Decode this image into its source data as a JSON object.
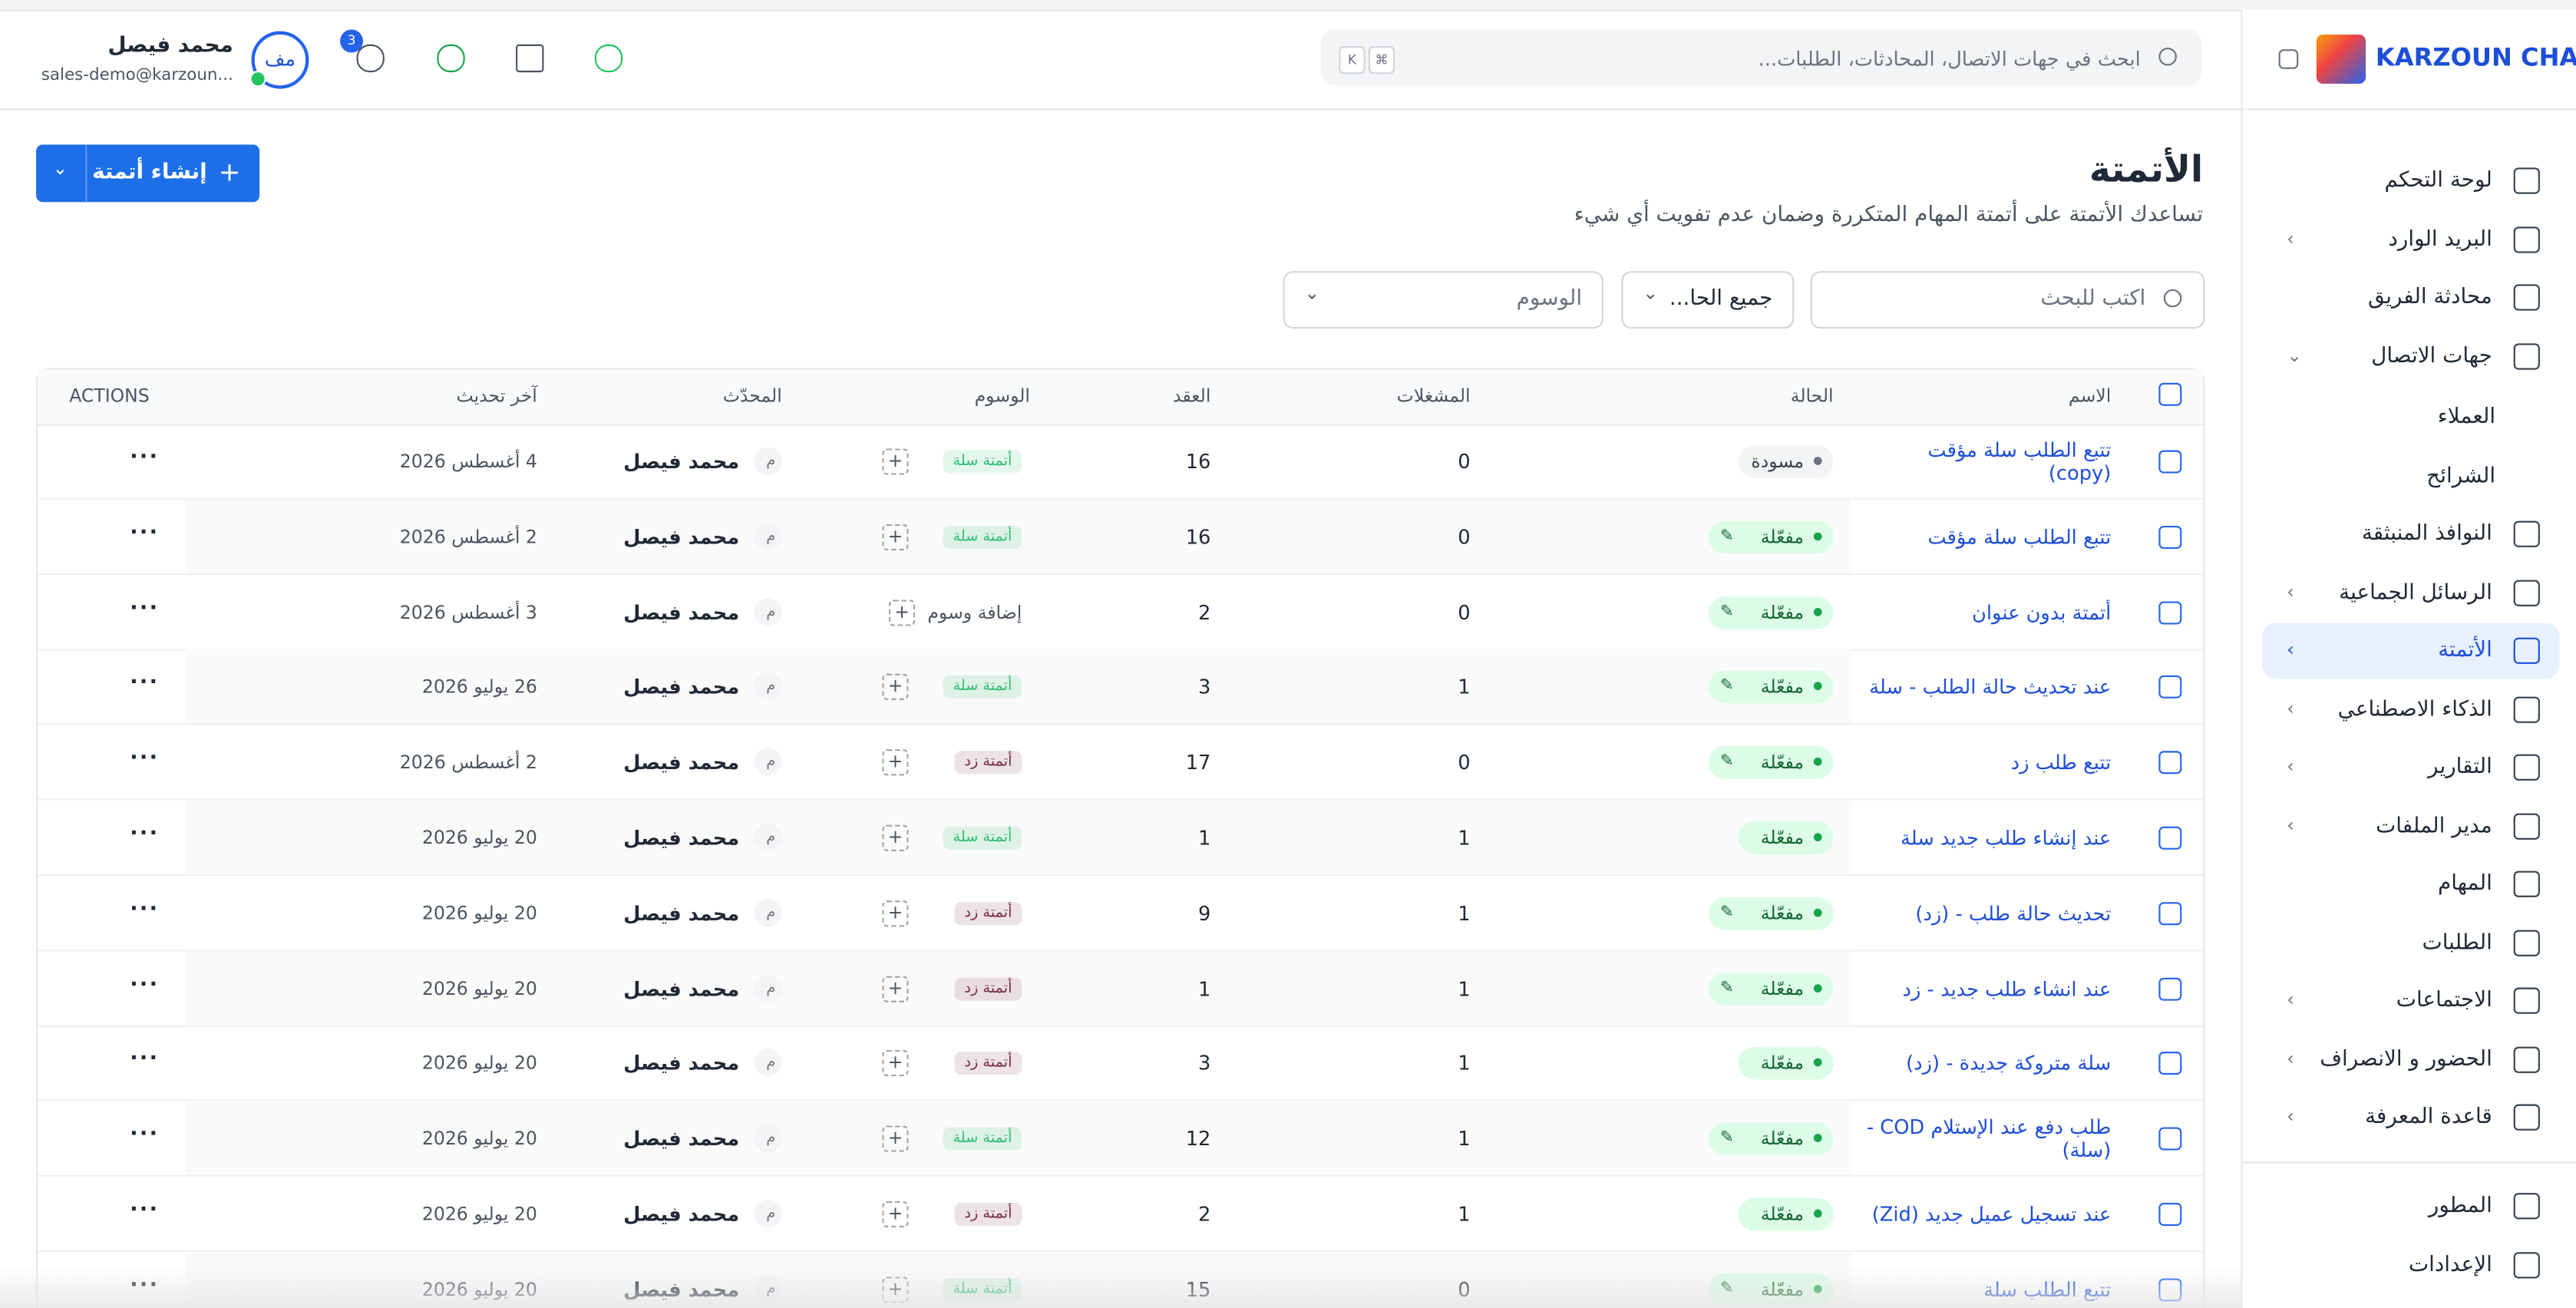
{
  "sidebar": {
    "logo": "KARZOUN CHAT",
    "items": [
      {
        "label": "لوحة التحكم",
        "expandable": false
      },
      {
        "label": "البريد الوارد",
        "expandable": true
      },
      {
        "label": "محادثة الفريق",
        "expandable": false
      },
      {
        "label": "جهات الاتصال",
        "expandable": true,
        "open": true
      },
      {
        "label": "العملاء",
        "sub": true
      },
      {
        "label": "الشرائح",
        "sub": true
      },
      {
        "label": "النوافذ المنبثقة",
        "expandable": false
      },
      {
        "label": "الرسائل الجماعية",
        "expandable": true
      },
      {
        "label": "الأتمتة",
        "expandable": true,
        "active": true
      },
      {
        "label": "الذكاء الاصطناعي",
        "expandable": true
      },
      {
        "label": "التقارير",
        "expandable": true
      },
      {
        "label": "مدير الملفات",
        "expandable": true
      },
      {
        "label": "المهام",
        "expandable": false
      },
      {
        "label": "الطلبات",
        "expandable": false
      },
      {
        "label": "الاجتماعات",
        "expandable": true
      },
      {
        "label": "الحضور و الانصراف",
        "expandable": true
      },
      {
        "label": "قاعدة المعرفة",
        "expandable": true
      }
    ],
    "bottom": [
      "المطور",
      "الإعدادات"
    ]
  },
  "topbar": {
    "search_placeholder": "ابحث في جهات الاتصال، المحادثات، الطلبات...",
    "keys": [
      "K",
      "⌘"
    ],
    "notifications": "3",
    "user_name": "محمد فيصل",
    "user_email": "sales-demo@karzoun...",
    "avatar": "مف"
  },
  "page": {
    "title": "الأتمتة",
    "subtitle": "تساعدك الأتمتة على أتمتة المهام المتكررة وضمان عدم تفويت أي شيء",
    "create_button": "إنشاء أتمتة",
    "search_placeholder": "اكتب للبحث",
    "status_filter": "جميع الحا...",
    "tags_filter": "الوسوم"
  },
  "table": {
    "headers": [
      "الاسم",
      "الحالة",
      "المشغلات",
      "العقد",
      "الوسوم",
      "المحدّث",
      "آخر تحديث",
      "ACTIONS"
    ],
    "rows": [
      {
        "name": "تتبع الطلب سلة مؤقت (copy)",
        "status": "مسودة",
        "draft": true,
        "edit_icon": false,
        "triggers": 0,
        "nodes": 16,
        "tag": "أتمتة سلة",
        "tag_color": "#2fbf71",
        "updater_initial": "م",
        "updater": "محمد فيصل",
        "updated": "4 أغسطس 2026"
      },
      {
        "name": "تتبع الطلب سلة مؤقت",
        "status": "مفعّلة",
        "edit_icon": true,
        "triggers": 0,
        "nodes": 16,
        "tag": "أتمتة سلة",
        "tag_color": "#2fbf71",
        "updater_initial": "م",
        "updater": "محمد فيصل",
        "updated": "2 أغسطس 2026"
      },
      {
        "name": "أتمتة بدون عنوان",
        "status": "مفعّلة",
        "edit_icon": true,
        "triggers": 0,
        "nodes": 2,
        "add_tag": "إضافة وسوم",
        "updater_initial": "م",
        "updater": "محمد فيصل",
        "updated": "3 أغسطس 2026"
      },
      {
        "name": "عند تحديث حالة الطلب - سلة",
        "status": "مفعّلة",
        "edit_icon": true,
        "triggers": 1,
        "nodes": 3,
        "tag": "أتمتة سلة",
        "tag_color": "#2fbf71",
        "updater_initial": "م",
        "updater": "محمد فيصل",
        "updated": "26 يوليو 2026"
      },
      {
        "name": "تتبع طلب زد",
        "status": "مفعّلة",
        "edit_icon": true,
        "triggers": 0,
        "nodes": 17,
        "tag": "أتمتة زد",
        "tag_color": "#7a2e45",
        "updater_initial": "م",
        "updater": "محمد فيصل",
        "updated": "2 أغسطس 2026"
      },
      {
        "name": "عند إنشاء طلب جديد سلة",
        "status": "مفعّلة",
        "edit_icon": false,
        "triggers": 1,
        "nodes": 1,
        "tag": "أتمتة سلة",
        "tag_color": "#2fbf71",
        "updater_initial": "م",
        "updater": "محمد فيصل",
        "updated": "20 يوليو 2026"
      },
      {
        "name": "تحديث حالة طلب - (زد)",
        "status": "مفعّلة",
        "edit_icon": true,
        "triggers": 1,
        "nodes": 9,
        "tag": "أتمتة زد",
        "tag_color": "#7a2e45",
        "updater_initial": "م",
        "updater": "محمد فيصل",
        "updated": "20 يوليو 2026"
      },
      {
        "name": "عند انشاء طلب جديد - زد",
        "status": "مفعّلة",
        "edit_icon": true,
        "triggers": 1,
        "nodes": 1,
        "tag": "أتمتة زد",
        "tag_color": "#7a2e45",
        "updater_initial": "م",
        "updater": "محمد فيصل",
        "updated": "20 يوليو 2026"
      },
      {
        "name": "سلة متروكة جديدة - (زد)",
        "status": "مفعّلة",
        "edit_icon": false,
        "triggers": 1,
        "nodes": 3,
        "tag": "أتمتة زد",
        "tag_color": "#7a2e45",
        "updater_initial": "م",
        "updater": "محمد فيصل",
        "updated": "20 يوليو 2026"
      },
      {
        "name": "طلب دفع عند الإستلام COD - (سلة)",
        "status": "مفعّلة",
        "edit_icon": true,
        "triggers": 1,
        "nodes": 12,
        "tag": "أتمتة سلة",
        "tag_color": "#2fbf71",
        "updater_initial": "م",
        "updater": "محمد فيصل",
        "updated": "20 يوليو 2026"
      },
      {
        "name": "عند تسجيل عميل جديد (Zid)",
        "status": "مفعّلة",
        "edit_icon": false,
        "triggers": 1,
        "nodes": 2,
        "tag": "أتمتة زد",
        "tag_color": "#7a2e45",
        "updater_initial": "م",
        "updater": "محمد فيصل",
        "updated": "20 يوليو 2026"
      },
      {
        "name": "تتبع الطلب سلة",
        "status": "مفعّلة",
        "edit_icon": true,
        "triggers": 0,
        "nodes": 15,
        "tag": "أتمتة سلة",
        "tag_color": "#2fbf71",
        "updater_initial": "م",
        "updater": "محمد فيصل",
        "updated": "20 يوليو 2026"
      }
    ]
  }
}
